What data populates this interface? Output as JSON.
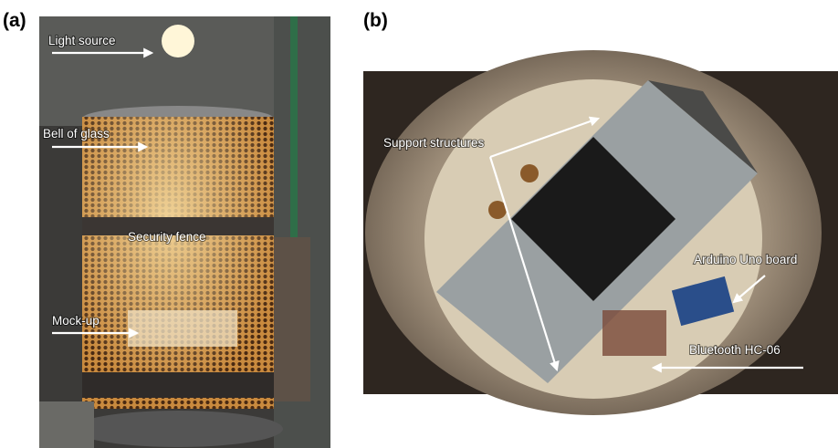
{
  "panels": [
    {
      "label": "(a)",
      "annotations": [
        "Light source",
        "Bell of glass",
        "Security fence",
        "Mock-up"
      ]
    },
    {
      "label": "(b)",
      "annotations": [
        "Support structures",
        "Arduino Uno board",
        "Bluetooth HC-06"
      ]
    }
  ]
}
